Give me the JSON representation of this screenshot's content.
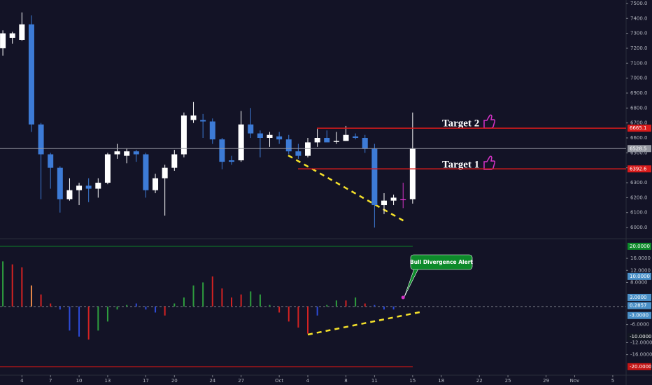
{
  "chart_data": [
    {
      "type": "candlestick",
      "x": [
        0,
        1,
        2,
        3,
        4,
        5,
        6,
        7,
        8,
        9,
        10,
        11,
        12,
        13,
        14,
        15,
        16,
        17,
        18,
        19,
        20,
        21,
        22,
        23,
        24,
        25,
        26,
        27,
        28,
        29,
        30,
        31,
        32,
        33,
        34,
        35,
        36,
        37,
        38,
        39,
        40,
        41,
        42,
        43
      ],
      "open": [
        7200,
        7270,
        7256,
        7360,
        6690,
        6490,
        6400,
        6190,
        6250,
        6280,
        6260,
        6300,
        6490,
        6480,
        6510,
        6490,
        6250,
        6330,
        6400,
        6490,
        6720,
        6720,
        6710,
        6590,
        6440,
        6450,
        6690,
        6630,
        6600,
        6610,
        6590,
        6510,
        6480,
        6570,
        6600,
        6580,
        6580,
        6610,
        6600,
        6530,
        6150,
        6180,
        6190,
        6190
      ],
      "high": [
        7320,
        7310,
        7440,
        7420,
        6700,
        6500,
        6410,
        6330,
        6300,
        6330,
        6330,
        6500,
        6560,
        6530,
        6520,
        6500,
        6360,
        6420,
        6520,
        6770,
        6840,
        6760,
        6730,
        6600,
        6480,
        6780,
        6800,
        6650,
        6640,
        6640,
        6620,
        6560,
        6600,
        6660,
        6650,
        6640,
        6680,
        6630,
        6620,
        6560,
        6230,
        6220,
        6300,
        6770
      ],
      "low": [
        7150,
        7230,
        7250,
        6640,
        6190,
        6260,
        6100,
        6180,
        6150,
        6170,
        6200,
        6290,
        6460,
        6430,
        6440,
        6200,
        6230,
        6080,
        6380,
        6470,
        6700,
        6600,
        6560,
        6390,
        6420,
        6440,
        6600,
        6470,
        6540,
        6560,
        6490,
        6460,
        6470,
        6540,
        6580,
        6560,
        6580,
        6590,
        6500,
        6000,
        6090,
        6150,
        6130,
        6160
      ],
      "close": [
        7300,
        7300,
        7360,
        6690,
        6490,
        6400,
        6190,
        6250,
        6280,
        6260,
        6300,
        6490,
        6510,
        6510,
        6490,
        6250,
        6330,
        6400,
        6490,
        6750,
        6750,
        6710,
        6590,
        6440,
        6450,
        6690,
        6630,
        6600,
        6620,
        6590,
        6510,
        6480,
        6570,
        6600,
        6570,
        6580,
        6620,
        6600,
        6530,
        6150,
        6180,
        6200,
        6190,
        6530
      ],
      "colors": [
        "#ffffff",
        "#ffffff",
        "#ffffff",
        "#3d7bd6",
        "#3d7bd6",
        "#3d7bd6",
        "#3d7bd6",
        "#ffffff",
        "#ffffff",
        "#3d7bd6",
        "#ffffff",
        "#ffffff",
        "#ffffff",
        "#ffffff",
        "#3d7bd6",
        "#3d7bd6",
        "#ffffff",
        "#ffffff",
        "#ffffff",
        "#ffffff",
        "#ffffff",
        "#3d7bd6",
        "#3d7bd6",
        "#3d7bd6",
        "#3d7bd6",
        "#ffffff",
        "#3d7bd6",
        "#3d7bd6",
        "#ffffff",
        "#3d7bd6",
        "#3d7bd6",
        "#3d7bd6",
        "#ffffff",
        "#ffffff",
        "#3d7bd6",
        "#ffffff",
        "#ffffff",
        "#3d7bd6",
        "#3d7bd6",
        "#3d7bd6",
        "#ffffff",
        "#ffffff",
        "#d633c8",
        "#ffffff"
      ],
      "xlim": [
        -0.3,
        65.4
      ],
      "xticks": [
        {
          "value": 2,
          "label": "4"
        },
        {
          "value": 5,
          "label": "7"
        },
        {
          "value": 8,
          "label": "10"
        },
        {
          "value": 11,
          "label": "13"
        },
        {
          "value": 15,
          "label": "17"
        },
        {
          "value": 18,
          "label": "20"
        },
        {
          "value": 22,
          "label": "24"
        },
        {
          "value": 25,
          "label": "27"
        },
        {
          "value": 29,
          "label": "Oct"
        },
        {
          "value": 32,
          "label": "4"
        },
        {
          "value": 36,
          "label": "8"
        },
        {
          "value": 39,
          "label": "11"
        },
        {
          "value": 43,
          "label": "15"
        },
        {
          "value": 46,
          "label": "18"
        },
        {
          "value": 50,
          "label": "22"
        },
        {
          "value": 53,
          "label": "25"
        },
        {
          "value": 57,
          "label": "29"
        },
        {
          "value": 60,
          "label": "Nov"
        },
        {
          "value": 64,
          "label": "5"
        }
      ],
      "ylim": [
        5930,
        7523
      ],
      "yticks": [
        {
          "value": 6000,
          "label": "6000.0"
        },
        {
          "value": 6100,
          "label": "6100.0"
        },
        {
          "value": 6200,
          "label": "6200.0"
        },
        {
          "value": 6300,
          "label": "6300.0"
        },
        {
          "value": 6400,
          "label": "6400.0"
        },
        {
          "value": 6500,
          "label": "6500.0"
        },
        {
          "value": 6600,
          "label": "6600.0"
        },
        {
          "value": 6700,
          "label": "6700.0"
        },
        {
          "value": 6800,
          "label": "6800.0"
        },
        {
          "value": 6900,
          "label": "6900.0"
        },
        {
          "value": 7000,
          "label": "7000.0"
        },
        {
          "value": 7100,
          "label": "7100.0"
        },
        {
          "value": 7200,
          "label": "7200.0"
        },
        {
          "value": 7300,
          "label": "7300.0"
        },
        {
          "value": 7400,
          "label": "7400.0"
        },
        {
          "value": 7500,
          "label": "7500.0"
        }
      ],
      "levels": [
        {
          "value": 6665.1,
          "label": "6665.1",
          "color": "#d81b1b"
        },
        {
          "value": 6528.5,
          "label": "6528.5",
          "color": "#9598a1"
        },
        {
          "value": 6392.6,
          "label": "6392.6",
          "color": "#d81b1b"
        }
      ],
      "annotations": [
        "Target 2",
        "Target 1"
      ]
    },
    {
      "type": "bar",
      "x": [
        0,
        1,
        2,
        3,
        4,
        5,
        6,
        7,
        8,
        9,
        10,
        11,
        12,
        13,
        14,
        15,
        16,
        17,
        18,
        19,
        20,
        21,
        22,
        23,
        24,
        25,
        26,
        27,
        28,
        29,
        30,
        31,
        32,
        33,
        34,
        35,
        36,
        37,
        38,
        39,
        40,
        41,
        42,
        43
      ],
      "values": [
        15,
        14,
        13,
        7,
        4,
        1,
        -1,
        -8,
        -10,
        -11,
        -8,
        -5,
        -1,
        0.5,
        1,
        -1,
        -2,
        -3,
        1,
        3,
        7,
        8,
        10,
        6,
        3,
        4,
        5,
        4,
        0.5,
        -2,
        -5,
        -7,
        -9,
        -3,
        0.5,
        2,
        2,
        3,
        1,
        0.5,
        -1,
        -1,
        3,
        null
      ],
      "colors": [
        "#2e9e3e",
        "#d32222",
        "#d32222",
        "#e8894a",
        "#d32222",
        "#d32222",
        "#2d4bd8",
        "#2d4bd8",
        "#2d4bd8",
        "#d32222",
        "#2e9e3e",
        "#2e9e3e",
        "#2e9e3e",
        "#2e9e3e",
        "#2d4bd8",
        "#2d4bd8",
        "#2d4bd8",
        "#d32222",
        "#2e9e3e",
        "#2e9e3e",
        "#2e9e3e",
        "#2e9e3e",
        "#d32222",
        "#d32222",
        "#d32222",
        "#d32222",
        "#2e9e3e",
        "#2e9e3e",
        "#2e9e3e",
        "#d32222",
        "#d32222",
        "#d32222",
        "#d32222",
        "#2d4bd8",
        "#2e9e3e",
        "#2e9e3e",
        "#d32222",
        "#2e9e3e",
        "#d32222",
        "#2d4bd8",
        "#2d4bd8",
        "#2d4bd8",
        "#d633c8",
        null
      ],
      "xlim": [
        -0.3,
        65.4
      ],
      "ylim": [
        -22.6,
        21.6
      ],
      "yticks": [
        {
          "value": 16,
          "label": "16.0000"
        },
        {
          "value": 12,
          "label": "12.0000"
        },
        {
          "value": 8,
          "label": "8.0000"
        },
        {
          "value": -6,
          "label": "-6.0000"
        },
        {
          "value": -12,
          "label": "-12.0000"
        },
        {
          "value": -16,
          "label": "-16.0000"
        }
      ],
      "levels": [
        {
          "value": 20,
          "label": "20.0000",
          "color": "#0d8a2a"
        },
        {
          "value": 10,
          "label": "10.0000",
          "color": "#4a90c8"
        },
        {
          "value": 3,
          "label": "3.0000",
          "color": "#4a90c8"
        },
        {
          "value": 0.2857,
          "label": "0.2857",
          "color": "#4a90c8"
        },
        {
          "value": -3,
          "label": "-3.0000",
          "color": "#4a90c8"
        },
        {
          "value": -10,
          "label": "-10.0000",
          "color": "#131722"
        },
        {
          "value": -20,
          "label": "-20.0000",
          "color": "#c41616"
        }
      ],
      "annotations": [
        "Bull Divergence Alert"
      ]
    }
  ]
}
